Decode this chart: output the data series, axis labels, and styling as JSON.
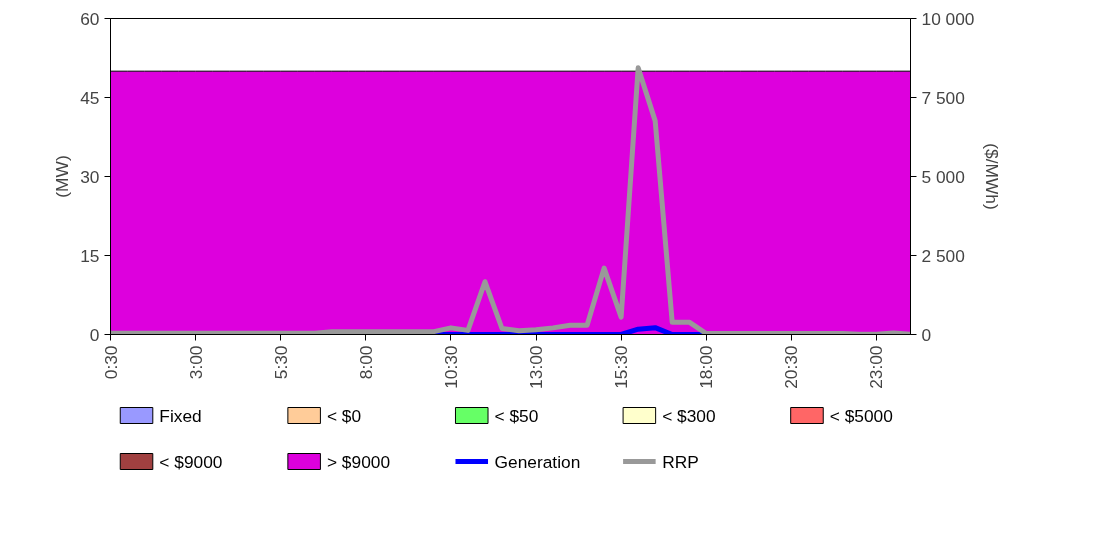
{
  "chart_data": {
    "type": "area",
    "x": [
      0.5,
      1,
      1.5,
      2,
      2.5,
      3,
      3.5,
      4,
      4.5,
      5,
      5.5,
      6,
      6.5,
      7,
      7.5,
      8,
      8.5,
      9,
      9.5,
      10,
      10.5,
      11,
      11.5,
      12,
      12.5,
      13,
      13.5,
      14,
      14.5,
      15,
      15.5,
      16,
      16.5,
      17,
      17.5,
      18,
      18.5,
      19,
      19.5,
      20,
      20.5,
      21,
      21.5,
      22,
      22.5,
      23,
      23.5,
      24
    ],
    "xlim": [
      0.5,
      24
    ],
    "xticks": [
      {
        "value": 0.5,
        "label": "0:30"
      },
      {
        "value": 3,
        "label": "3:00"
      },
      {
        "value": 5.5,
        "label": "5:30"
      },
      {
        "value": 8,
        "label": "8:00"
      },
      {
        "value": 10.5,
        "label": "10:30"
      },
      {
        "value": 13,
        "label": "13:00"
      },
      {
        "value": 15.5,
        "label": "15:30"
      },
      {
        "value": 18,
        "label": "18:00"
      },
      {
        "value": 20.5,
        "label": "20:30"
      },
      {
        "value": 23,
        "label": "23:00"
      }
    ],
    "ylim": [
      0,
      60
    ],
    "yticks": [
      0,
      15,
      30,
      45,
      60
    ],
    "ylabel": "(MW)",
    "y2lim": [
      0,
      10000
    ],
    "y2ticks": [
      {
        "value": 0,
        "label": "0"
      },
      {
        "value": 2500,
        "label": "2 500"
      },
      {
        "value": 5000,
        "label": "5 000"
      },
      {
        "value": 7500,
        "label": "7 500"
      },
      {
        "value": 10000,
        "label": "10 000"
      }
    ],
    "y2label": "($/MWh)",
    "grid": false,
    "legend": "bottom",
    "marker": "none",
    "series": [
      {
        "name": "Fixed",
        "color": "#9999ff",
        "values": [
          null,
          null,
          null,
          null,
          null,
          null,
          null,
          null,
          null,
          null,
          null,
          null,
          null,
          null,
          null,
          null,
          null,
          null,
          null,
          null,
          null,
          null,
          null,
          null,
          null,
          null,
          null,
          null,
          null,
          null,
          null,
          null,
          null,
          null,
          null,
          null,
          null,
          null,
          null,
          null,
          null,
          null,
          null,
          null,
          null,
          null,
          null,
          null
        ]
      },
      {
        "name": "< $0",
        "color": "#ffcc99",
        "values": [
          null,
          null,
          null,
          null,
          null,
          null,
          null,
          null,
          null,
          null,
          null,
          null,
          null,
          null,
          null,
          null,
          null,
          null,
          null,
          null,
          null,
          null,
          null,
          null,
          null,
          null,
          null,
          null,
          null,
          null,
          null,
          null,
          null,
          null,
          null,
          null,
          null,
          null,
          null,
          null,
          null,
          null,
          null,
          null,
          null,
          null,
          null,
          null
        ]
      },
      {
        "name": "< $50",
        "color": "#66ff66",
        "values": [
          null,
          null,
          null,
          null,
          null,
          null,
          null,
          null,
          null,
          null,
          null,
          null,
          null,
          null,
          null,
          null,
          null,
          null,
          null,
          null,
          null,
          null,
          null,
          null,
          null,
          null,
          null,
          null,
          null,
          null,
          null,
          null,
          null,
          null,
          null,
          null,
          null,
          null,
          null,
          null,
          null,
          null,
          null,
          null,
          null,
          null,
          null,
          null
        ]
      },
      {
        "name": "< $300",
        "color": "#ffffcc",
        "values": [
          null,
          null,
          null,
          null,
          null,
          null,
          null,
          null,
          null,
          null,
          null,
          null,
          null,
          null,
          null,
          null,
          null,
          null,
          null,
          null,
          null,
          null,
          null,
          null,
          null,
          null,
          null,
          null,
          null,
          null,
          null,
          null,
          null,
          null,
          null,
          null,
          null,
          null,
          null,
          null,
          null,
          null,
          null,
          null,
          null,
          null,
          null,
          null
        ]
      },
      {
        "name": "< $5000",
        "color": "#ff6666",
        "values": [
          null,
          null,
          null,
          null,
          null,
          null,
          null,
          null,
          null,
          null,
          null,
          null,
          null,
          null,
          null,
          null,
          null,
          null,
          null,
          null,
          null,
          null,
          null,
          null,
          null,
          null,
          null,
          null,
          null,
          null,
          null,
          null,
          null,
          null,
          null,
          null,
          null,
          null,
          null,
          null,
          null,
          null,
          null,
          null,
          null,
          null,
          null,
          null
        ]
      },
      {
        "name": "< $9000",
        "color": "#a04040",
        "values": [
          null,
          null,
          null,
          null,
          null,
          null,
          null,
          null,
          null,
          null,
          null,
          null,
          null,
          null,
          null,
          null,
          null,
          null,
          null,
          null,
          null,
          null,
          null,
          null,
          null,
          null,
          null,
          null,
          null,
          null,
          null,
          null,
          null,
          null,
          null,
          null,
          null,
          null,
          null,
          null,
          null,
          null,
          null,
          null,
          null,
          null,
          null,
          null
        ]
      },
      {
        "name": "> $9000",
        "color": "#dd00dd",
        "values": [
          50,
          50,
          50,
          50,
          50,
          50,
          50,
          50,
          50,
          50,
          50,
          50,
          50,
          50,
          50,
          50,
          50,
          50,
          50,
          50,
          50,
          50,
          50,
          50,
          50,
          50,
          50,
          50,
          50,
          50,
          50,
          50,
          50,
          50,
          50,
          50,
          50,
          50,
          50,
          50,
          50,
          50,
          50,
          50,
          50,
          50,
          50,
          50
        ]
      },
      {
        "name": "Generation",
        "type": "line",
        "color": "#0000ff",
        "values": [
          null,
          null,
          null,
          null,
          null,
          null,
          null,
          null,
          null,
          null,
          null,
          null,
          null,
          null,
          null,
          null,
          null,
          null,
          null,
          0,
          0,
          0,
          0,
          0,
          0,
          0,
          0,
          0,
          0,
          0,
          0,
          1.0,
          1.3,
          0,
          0,
          0,
          null,
          null,
          null,
          null,
          null,
          null,
          null,
          null,
          null,
          null,
          null,
          null
        ]
      },
      {
        "name": "RRP",
        "type": "line",
        "axis": "y2",
        "color": "#999999",
        "values": [
          40,
          40,
          40,
          40,
          40,
          40,
          40,
          40,
          40,
          40,
          40,
          40,
          40,
          90,
          90,
          90,
          90,
          90,
          90,
          90,
          210,
          130,
          1670,
          190,
          120,
          150,
          210,
          290,
          290,
          2100,
          550,
          8440,
          6760,
          390,
          390,
          30,
          30,
          30,
          30,
          30,
          30,
          30,
          30,
          30,
          10,
          10,
          50,
          10
        ]
      }
    ]
  }
}
